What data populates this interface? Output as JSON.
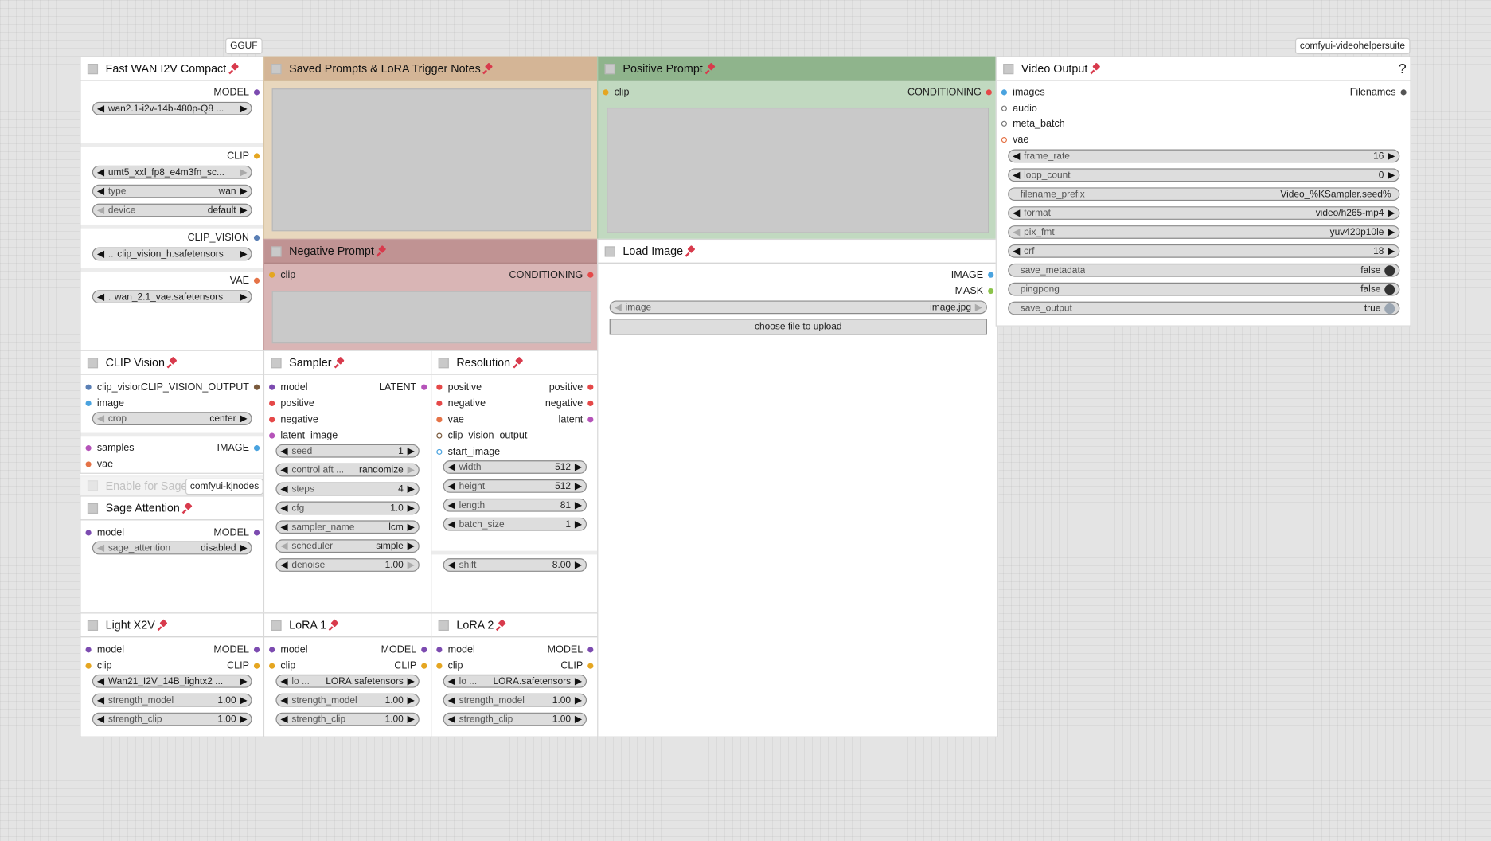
{
  "tags": {
    "gguf": "GGUF",
    "videohelper": "comfyui-videohelpersuite",
    "kjnodes": "comfyui-kjnodes"
  },
  "colors": {
    "model": "#7c4bb0",
    "clip": "#e5a621",
    "conditioning": "#e54848",
    "image": "#4aa3df",
    "vae": "#e57347",
    "latent": "#b553b9",
    "mask": "#8bc34a",
    "meta": "#777777",
    "pin": "#d83a4c",
    "notes_bg": "#e8d7bd",
    "notes_header": "#d4b596",
    "pos_bg": "#c1d9c0",
    "pos_header": "#8fb48c",
    "neg_bg": "#d9b5b5",
    "neg_header": "#c09393"
  },
  "fast_wan": {
    "title": "Fast WAN I2V Compact",
    "model_out": "MODEL",
    "model_name": "wan2.1-i2v-14b-480p-Q8 ...",
    "clip_out": "CLIP",
    "clip_name": "umt5_xxl_fp8_e4m3fn_sc...",
    "type_label": "type",
    "type_value": "wan",
    "device_label": "device",
    "device_value": "default",
    "clip_vision_out": "CLIP_VISION",
    "clip_vision_name": "clip_vision_h.safetensors",
    "clip_vision_prefix": "..",
    "vae_out": "VAE",
    "vae_name": "wan_2.1_vae.safetensors",
    "vae_prefix": "."
  },
  "notes": {
    "title": "Saved Prompts & LoRA Trigger Notes"
  },
  "positive": {
    "title": "Positive Prompt",
    "in_clip": "clip",
    "out": "CONDITIONING"
  },
  "negative": {
    "title": "Negative Prompt",
    "in_clip": "clip",
    "out": "CONDITIONING"
  },
  "load_image": {
    "title": "Load Image",
    "out_image": "IMAGE",
    "out_mask": "MASK",
    "image_label": "image",
    "image_value": "image.jpg",
    "upload": "choose file to upload"
  },
  "video_output": {
    "title": "Video Output",
    "help": "?",
    "in_images": "images",
    "in_audio": "audio",
    "in_meta": "meta_batch",
    "in_vae": "vae",
    "out_filenames": "Filenames",
    "widgets": [
      {
        "label": "frame_rate",
        "value": "16",
        "arrows": true
      },
      {
        "label": "loop_count",
        "value": "0",
        "arrows": true
      },
      {
        "label": "filename_prefix",
        "value": "Video_%KSampler.seed%",
        "arrows": false
      },
      {
        "label": "format",
        "value": "video/h265-mp4",
        "arrows": true
      },
      {
        "label": "pix_fmt",
        "value": "yuv420p10le",
        "arrows": true
      },
      {
        "label": "crf",
        "value": "18",
        "arrows": true
      },
      {
        "label": "save_metadata",
        "value": "false",
        "toggle": "off"
      },
      {
        "label": "pingpong",
        "value": "false",
        "toggle": "off"
      },
      {
        "label": "save_output",
        "value": "true",
        "toggle": "on"
      }
    ]
  },
  "clip_vision": {
    "title": "CLIP Vision",
    "in_clip_vision": "clip_vision",
    "out": "CLIP_VISION_OUTPUT",
    "in_image": "image",
    "crop_label": "crop",
    "crop_value": "center",
    "in_samples": "samples",
    "out_image": "IMAGE",
    "in_vae": "vae",
    "enable_label": "Enable for Sage"
  },
  "sage": {
    "title": "Sage Attention",
    "in_model": "model",
    "out_model": "MODEL",
    "label": "sage_attention",
    "value": "disabled"
  },
  "sampler": {
    "title": "Sampler",
    "in_model": "model",
    "out": "LATENT",
    "in_positive": "positive",
    "in_negative": "negative",
    "in_latent": "latent_image",
    "widgets": [
      {
        "label": "seed",
        "value": "1"
      },
      {
        "label": "control aft ...",
        "value": "randomize"
      },
      {
        "label": "steps",
        "value": "4"
      },
      {
        "label": "cfg",
        "value": "1.0"
      },
      {
        "label": "sampler_name",
        "value": "lcm"
      },
      {
        "label": "scheduler",
        "value": "simple"
      },
      {
        "label": "denoise",
        "value": "1.00"
      }
    ]
  },
  "resolution": {
    "title": "Resolution",
    "in_positive": "positive",
    "out_positive": "positive",
    "in_negative": "negative",
    "out_negative": "negative",
    "in_vae": "vae",
    "out_latent": "latent",
    "in_cvo": "clip_vision_output",
    "in_start": "start_image",
    "widgets": [
      {
        "label": "width",
        "value": "512"
      },
      {
        "label": "height",
        "value": "512"
      },
      {
        "label": "length",
        "value": "81"
      },
      {
        "label": "batch_size",
        "value": "1"
      }
    ],
    "shift_label": "shift",
    "shift_value": "8.00"
  },
  "light": {
    "title": "Light X2V",
    "in_model": "model",
    "out_model": "MODEL",
    "in_clip": "clip",
    "out_clip": "CLIP",
    "lora": "Wan21_I2V_14B_lightx2 ...",
    "sm_label": "strength_model",
    "sm_value": "1.00",
    "sc_label": "strength_clip",
    "sc_value": "1.00"
  },
  "lora1": {
    "title": "LoRA 1",
    "in_model": "model",
    "out_model": "MODEL",
    "in_clip": "clip",
    "out_clip": "CLIP",
    "lora_prefix": "lo ...",
    "lora": "LORA.safetensors",
    "sm_label": "strength_model",
    "sm_value": "1.00",
    "sc_label": "strength_clip",
    "sc_value": "1.00"
  },
  "lora2": {
    "title": "LoRA 2",
    "in_model": "model",
    "out_model": "MODEL",
    "in_clip": "clip",
    "out_clip": "CLIP",
    "lora_prefix": "lo ...",
    "lora": "LORA.safetensors",
    "sm_label": "strength_model",
    "sm_value": "1.00",
    "sc_label": "strength_clip",
    "sc_value": "1.00"
  }
}
